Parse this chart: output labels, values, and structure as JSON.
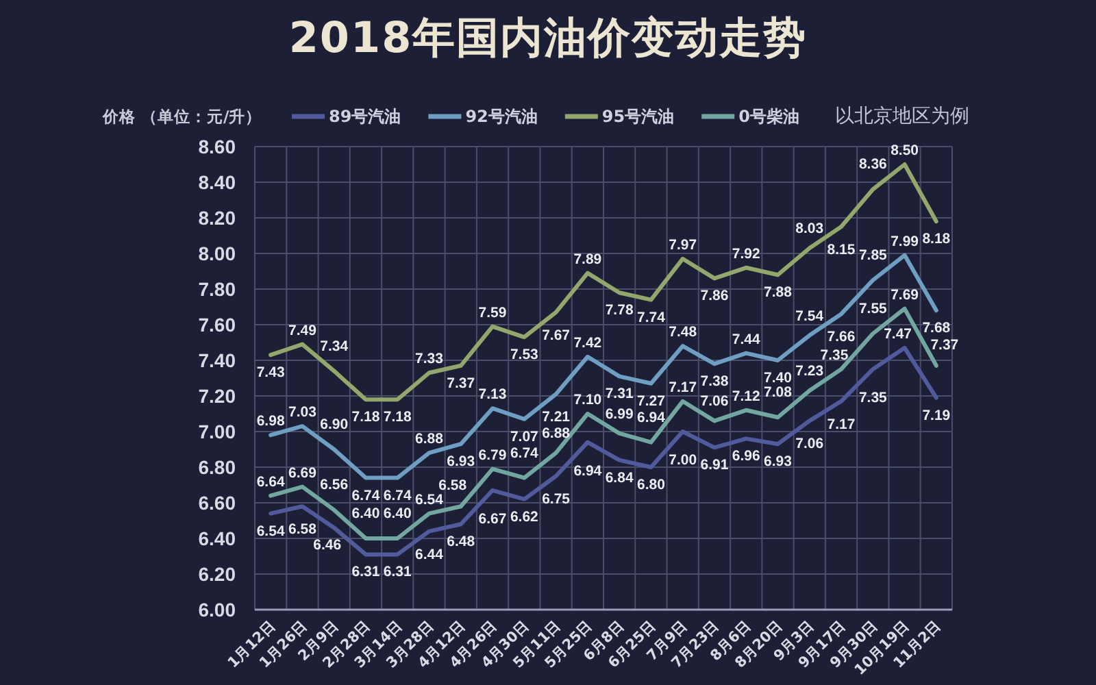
{
  "chart_data": {
    "type": "line",
    "title": "2018年国内油价变动走势",
    "ylabel": "价格 （单位：元/升）",
    "annotations": [
      "以北京地区为例"
    ],
    "categories": [
      "1月12日",
      "1月26日",
      "2月9日",
      "2月28日",
      "3月14日",
      "3月28日",
      "4月12日",
      "4月26日",
      "4月30日",
      "5月11日",
      "5月25日",
      "6月8日",
      "6月25日",
      "7月9日",
      "7月23日",
      "8月6日",
      "8月20日",
      "9月3日",
      "9月17日",
      "9月30日",
      "10月19日",
      "11月2日"
    ],
    "series": [
      {
        "name": "89号汽油",
        "color": "#525a9e",
        "values": [
          6.54,
          6.58,
          6.46,
          6.31,
          6.31,
          6.44,
          6.48,
          6.67,
          6.62,
          6.75,
          6.94,
          6.84,
          6.8,
          7.0,
          6.91,
          6.96,
          6.93,
          7.06,
          7.17,
          7.35,
          7.47,
          7.19
        ],
        "value_labels": [
          "6.54",
          "6.58",
          "6.46",
          "6.31",
          "6.31",
          "6.44",
          "6.48",
          "6.67",
          "6.62",
          "6.75",
          "6.94",
          "6.84",
          "6.80",
          "7.00",
          "6.91",
          "6.96",
          "6.93",
          "7.06",
          "7.17",
          "7.35",
          "7.47",
          "7.19"
        ]
      },
      {
        "name": "92号汽油",
        "color": "#6e9ec2",
        "values": [
          6.98,
          7.03,
          6.9,
          6.74,
          6.74,
          6.88,
          6.93,
          7.13,
          7.07,
          7.21,
          7.42,
          7.31,
          7.27,
          7.48,
          7.38,
          7.44,
          7.4,
          7.54,
          7.66,
          7.85,
          7.99,
          7.68
        ],
        "value_labels": [
          "6.98",
          "7.03",
          "6.90",
          "6.74",
          "6.74",
          "6.88",
          "6.93",
          "7.13",
          "7.07",
          "7.21",
          "7.42",
          "7.31",
          "7.27",
          "7.48",
          "7.38",
          "7.44",
          "7.40",
          "7.54",
          "7.66",
          "7.85",
          "7.99",
          "7.68"
        ]
      },
      {
        "name": "95号汽油",
        "color": "#93a66c",
        "values": [
          7.43,
          7.49,
          7.34,
          7.18,
          7.18,
          7.33,
          7.37,
          7.59,
          7.53,
          7.67,
          7.89,
          7.78,
          7.74,
          7.97,
          7.86,
          7.92,
          7.88,
          8.03,
          8.15,
          8.36,
          8.5,
          8.18
        ],
        "value_labels": [
          "7.43",
          "7.49",
          "7.34",
          "7.18",
          "7.18",
          "7.33",
          "7.37",
          "7.59",
          "7.53",
          "7.67",
          "7.89",
          "7.78",
          "7.74",
          "7.97",
          "7.86",
          "7.92",
          "7.88",
          "8.03",
          "8.15",
          "8.36",
          "8.50",
          "8.18"
        ]
      },
      {
        "name": "0号柴油",
        "color": "#72a6a0",
        "values": [
          6.64,
          6.69,
          6.56,
          6.4,
          6.4,
          6.54,
          6.58,
          6.79,
          6.74,
          6.88,
          7.1,
          6.99,
          6.94,
          7.17,
          7.06,
          7.12,
          7.08,
          7.23,
          7.35,
          7.55,
          7.69,
          7.37
        ],
        "value_labels": [
          "6.64",
          "6.69",
          "6.56",
          "6.40",
          "6.40",
          "6.54",
          "6.58",
          "6.79",
          "6.74",
          "6.88",
          "7.10",
          "6.99",
          "6.94",
          "7.17",
          "7.06",
          "7.12",
          "7.08",
          "7.23",
          "7.35",
          "7.55",
          "7.69",
          "7.37"
        ]
      }
    ],
    "ylim": [
      6.0,
      8.6
    ],
    "yticks": [
      {
        "value": 6.0,
        "label": "6.00"
      },
      {
        "value": 6.2,
        "label": "6.20"
      },
      {
        "value": 6.4,
        "label": "6.40"
      },
      {
        "value": 6.6,
        "label": "6.60"
      },
      {
        "value": 6.8,
        "label": "6.80"
      },
      {
        "value": 7.0,
        "label": "7.00"
      },
      {
        "value": 7.2,
        "label": "7.20"
      },
      {
        "value": 7.4,
        "label": "7.40"
      },
      {
        "value": 7.6,
        "label": "7.60"
      },
      {
        "value": 7.8,
        "label": "7.80"
      },
      {
        "value": 8.0,
        "label": "8.00"
      },
      {
        "value": 8.2,
        "label": "8.20"
      },
      {
        "value": 8.4,
        "label": "8.40"
      },
      {
        "value": 8.6,
        "label": "8.60"
      }
    ],
    "grid": true,
    "legend": "top",
    "line_style": "solid"
  }
}
